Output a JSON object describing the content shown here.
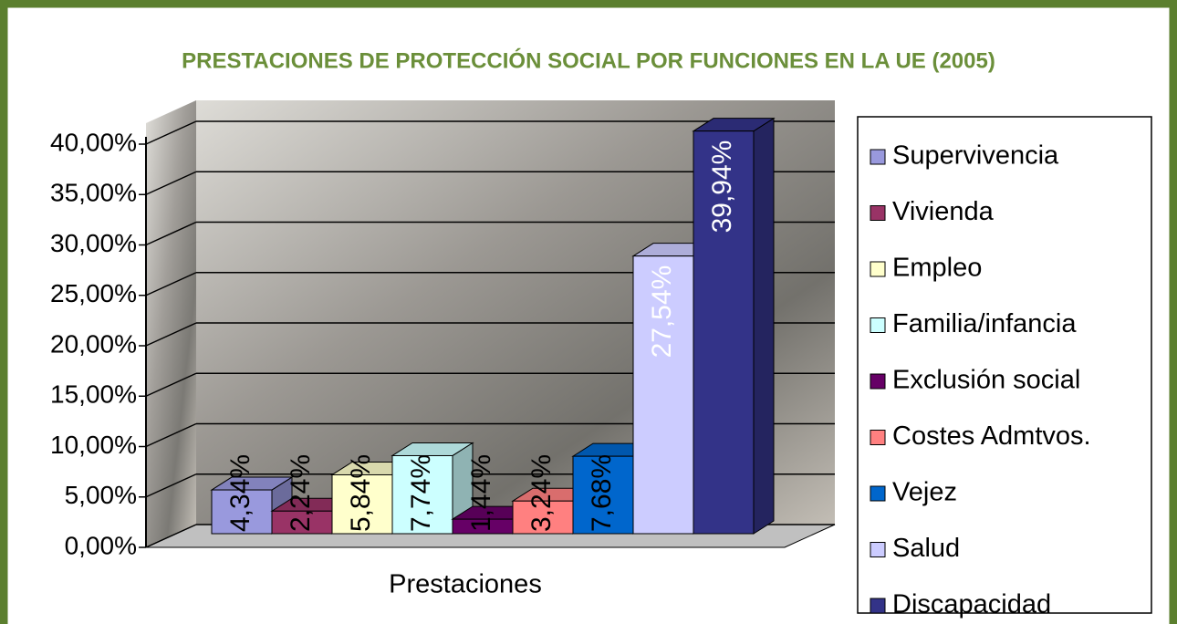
{
  "chart_data": {
    "type": "bar3d",
    "title": "PRESTACIONES DE PROTECCIÓN SOCIAL POR FUNCIONES EN LA UE (2005)",
    "categories": [
      "Prestaciones"
    ],
    "series": [
      {
        "name": "Supervivencia",
        "color": "#9999dd",
        "values": [
          4.34
        ],
        "value_labels": [
          "4,34%"
        ]
      },
      {
        "name": "Vivienda",
        "color": "#993366",
        "values": [
          2.24
        ],
        "value_labels": [
          "2,24%"
        ]
      },
      {
        "name": "Empleo",
        "color": "#ffffcc",
        "values": [
          5.84
        ],
        "value_labels": [
          "5,84%"
        ]
      },
      {
        "name": "Familia/infancia",
        "color": "#ccffff",
        "values": [
          7.74
        ],
        "value_labels": [
          "7,74%"
        ]
      },
      {
        "name": "Exclusión social",
        "color": "#660066",
        "values": [
          1.44
        ],
        "value_labels": [
          "1,44%"
        ]
      },
      {
        "name": "Costes Admtvos.",
        "color": "#ff8080",
        "values": [
          3.24
        ],
        "value_labels": [
          "3,24%"
        ]
      },
      {
        "name": "Vejez",
        "color": "#0066cc",
        "values": [
          7.68
        ],
        "value_labels": [
          "7,68%"
        ]
      },
      {
        "name": "Salud",
        "color": "#ccccff",
        "values": [
          27.54
        ],
        "value_labels": [
          "27,54%"
        ]
      },
      {
        "name": "Discapacidad",
        "color": "#333388",
        "values": [
          39.94
        ],
        "value_labels": [
          "39,94%"
        ]
      }
    ],
    "ylim": [
      0,
      40
    ],
    "yticks": [
      {
        "value": 0,
        "label": "0,00%"
      },
      {
        "value": 5,
        "label": "5,00%"
      },
      {
        "value": 10,
        "label": "10,00%"
      },
      {
        "value": 15,
        "label": "15,00%"
      },
      {
        "value": 20,
        "label": "20,00%"
      },
      {
        "value": 25,
        "label": "25,00%"
      },
      {
        "value": 30,
        "label": "30,00%"
      },
      {
        "value": 35,
        "label": "35,00%"
      },
      {
        "value": 40,
        "label": "40,00%"
      }
    ],
    "grid": true
  }
}
